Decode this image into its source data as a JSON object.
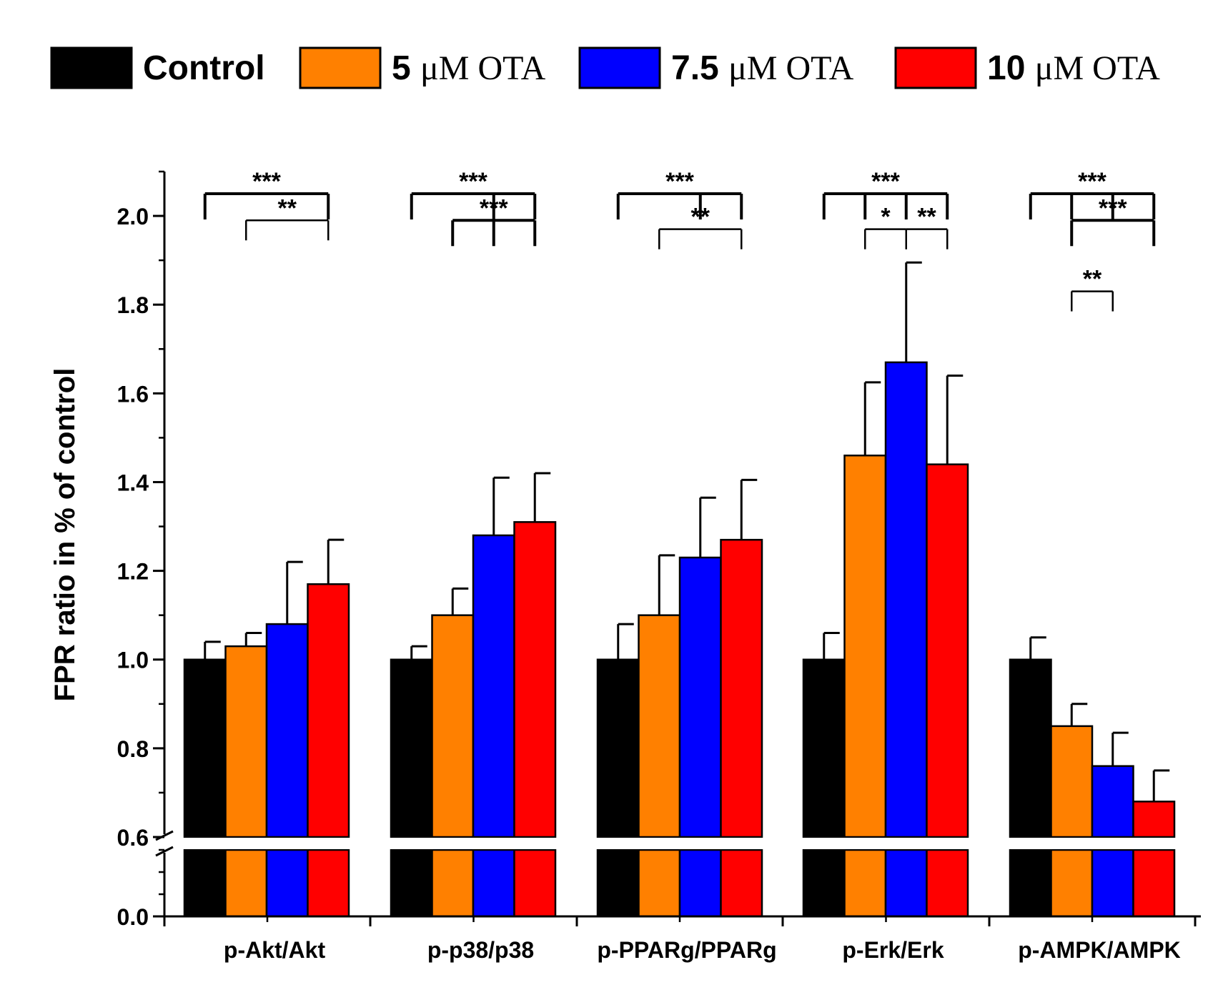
{
  "chart_data": {
    "type": "bar",
    "ylabel": "FPR ratio in % of control",
    "xlabel": "",
    "categories": [
      "p-Akt/Akt",
      "p-p38/p38",
      "p-PPARg/PPARg",
      "p-Erk/Erk",
      "p-AMPK/AMPK"
    ],
    "series": [
      {
        "name": "Control",
        "name_bold": "Control",
        "name_serif": "",
        "color": "#000000",
        "values": [
          1.0,
          1.0,
          1.0,
          1.0,
          1.0
        ],
        "errors": [
          0.04,
          0.03,
          0.08,
          0.06,
          0.05
        ]
      },
      {
        "name": "5 μM OTA",
        "name_bold": "5 ",
        "name_serif": "μM OTA",
        "color": "#ff8000",
        "values": [
          1.03,
          1.1,
          1.1,
          1.46,
          0.85
        ],
        "errors": [
          0.03,
          0.06,
          0.135,
          0.165,
          0.05
        ]
      },
      {
        "name": "7.5 μM OTA",
        "name_bold": "7.5 ",
        "name_serif": "μM OTA",
        "color": "#0000ff",
        "values": [
          1.08,
          1.28,
          1.23,
          1.67,
          0.76
        ],
        "errors": [
          0.14,
          0.13,
          0.135,
          0.225,
          0.075
        ]
      },
      {
        "name": "10 μM OTA",
        "name_bold": "10 ",
        "name_serif": "μM OTA",
        "color": "#ff0000",
        "values": [
          1.17,
          1.31,
          1.27,
          1.44,
          0.68
        ],
        "errors": [
          0.1,
          0.11,
          0.135,
          0.2,
          0.07
        ]
      }
    ],
    "yticks": [
      {
        "value": 0.0,
        "label": "0.0"
      },
      {
        "value": 0.6,
        "label": "0.6"
      },
      {
        "value": 0.8,
        "label": "0.8"
      },
      {
        "value": 1.0,
        "label": "1.0"
      },
      {
        "value": 1.2,
        "label": "1.2"
      },
      {
        "value": 1.4,
        "label": "1.4"
      },
      {
        "value": 1.6,
        "label": "1.6"
      },
      {
        "value": 1.8,
        "label": "1.8"
      },
      {
        "value": 2.0,
        "label": "2.0"
      }
    ],
    "ylim_lower_segment": [
      0.0,
      0.3
    ],
    "ylim_upper_segment": [
      0.6,
      2.1
    ],
    "axis_break": true,
    "legend_position": "top",
    "significance": [
      {
        "group": 0,
        "level": 2.05,
        "from": 0,
        "to": 3,
        "ticks": [
          0,
          3
        ],
        "label": "***"
      },
      {
        "group": 0,
        "level": 1.99,
        "from": 1,
        "to": 3,
        "ticks": [
          1,
          3
        ],
        "label": "**",
        "thin": true
      },
      {
        "group": 1,
        "level": 2.05,
        "from": 0,
        "to": 3,
        "ticks": [
          0,
          2,
          3
        ],
        "label": "***"
      },
      {
        "group": 1,
        "level": 1.99,
        "from": 1,
        "to": 3,
        "ticks": [
          1,
          2,
          3
        ],
        "label": "***"
      },
      {
        "group": 2,
        "level": 2.05,
        "from": 0,
        "to": 3,
        "ticks": [
          0,
          2,
          3
        ],
        "label": "***"
      },
      {
        "group": 2,
        "level": 1.97,
        "from": 1,
        "to": 3,
        "ticks": [
          1,
          3
        ],
        "label": "**",
        "thin": true
      },
      {
        "group": 3,
        "level": 2.05,
        "from": 0,
        "to": 3,
        "ticks": [
          0,
          1,
          2,
          3
        ],
        "label": "***"
      },
      {
        "group": 3,
        "level": 1.97,
        "from": 1,
        "to": 2,
        "ticks": [
          1,
          2
        ],
        "label": "*",
        "thin": true
      },
      {
        "group": 3,
        "level": 1.97,
        "from": 2,
        "to": 3,
        "ticks": [
          2,
          3
        ],
        "label": "**",
        "thin": true
      },
      {
        "group": 4,
        "level": 2.05,
        "from": 0,
        "to": 3,
        "ticks": [
          0,
          1,
          2,
          3
        ],
        "label": "***"
      },
      {
        "group": 4,
        "level": 1.99,
        "from": 1,
        "to": 3,
        "ticks": [
          1,
          3
        ],
        "label": "***"
      },
      {
        "group": 4,
        "level": 1.83,
        "from": 1,
        "to": 2,
        "ticks": [
          1,
          2
        ],
        "label": "**",
        "thin": true
      }
    ]
  }
}
